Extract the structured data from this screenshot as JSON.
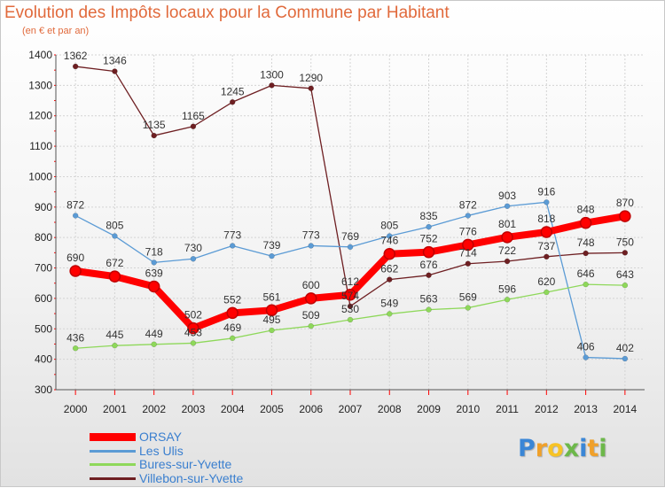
{
  "chart_data": {
    "type": "line",
    "title": "Evolution des Impôts locaux pour la Commune par Habitant",
    "subtitle": "(en € et par an)",
    "x": [
      "2000",
      "2001",
      "2002",
      "2003",
      "2004",
      "2005",
      "2006",
      "2007",
      "2008",
      "2009",
      "2010",
      "2011",
      "2012",
      "2013",
      "2014"
    ],
    "ylim": [
      300,
      1400
    ],
    "yticks": [
      "300",
      "400",
      "500",
      "600",
      "700",
      "800",
      "900",
      "1000",
      "1100",
      "1200",
      "1300",
      "1400"
    ],
    "grid": true,
    "legend_position": "bottom-left",
    "series": [
      {
        "name": "ORSAY",
        "color": "#ff0000",
        "values": [
          690,
          672,
          639,
          502,
          552,
          561,
          600,
          612,
          746,
          752,
          776,
          801,
          818,
          848,
          870
        ],
        "labels": [
          "690",
          "672",
          "639",
          "502",
          "552",
          "561",
          "600",
          "612",
          "746",
          "752",
          "776",
          "801",
          "818",
          "848",
          "870"
        ]
      },
      {
        "name": "Les Ulis",
        "color": "#5b9bd5",
        "values": [
          872,
          805,
          718,
          730,
          773,
          739,
          773,
          769,
          805,
          835,
          872,
          903,
          916,
          406,
          402
        ],
        "labels": [
          "872",
          "805",
          "718",
          "730",
          "773",
          "739",
          "773",
          "769",
          "805",
          "835",
          "872",
          "903",
          "916",
          "406",
          "402"
        ]
      },
      {
        "name": "Bures-sur-Yvette",
        "color": "#8ed85a",
        "values": [
          436,
          445,
          449,
          453,
          469,
          495,
          509,
          530,
          549,
          563,
          569,
          596,
          620,
          646,
          643
        ],
        "labels": [
          "436",
          "445",
          "449",
          "453",
          "469",
          "495",
          "509",
          "530",
          "549",
          "563",
          "569",
          "596",
          "620",
          "646",
          "643"
        ]
      },
      {
        "name": "Villebon-sur-Yvette",
        "color": "#6e1f22",
        "values": [
          1362,
          1346,
          1135,
          1165,
          1245,
          1300,
          1290,
          574,
          662,
          676,
          714,
          722,
          737,
          748,
          750
        ],
        "labels": [
          "1362",
          "1346",
          "1135",
          "1165",
          "1245",
          "1300",
          "1290",
          "574",
          "662",
          "676",
          "714",
          "722",
          "737",
          "748",
          "750"
        ]
      }
    ]
  },
  "brand": {
    "letters": [
      "P",
      "r",
      "o",
      "x",
      "i",
      "t",
      "i"
    ],
    "colors": [
      "#3a86d6",
      "#f0a02a",
      "#f7c325",
      "#6db84a",
      "#3a86d6",
      "#f0a02a",
      "#6db84a"
    ]
  }
}
